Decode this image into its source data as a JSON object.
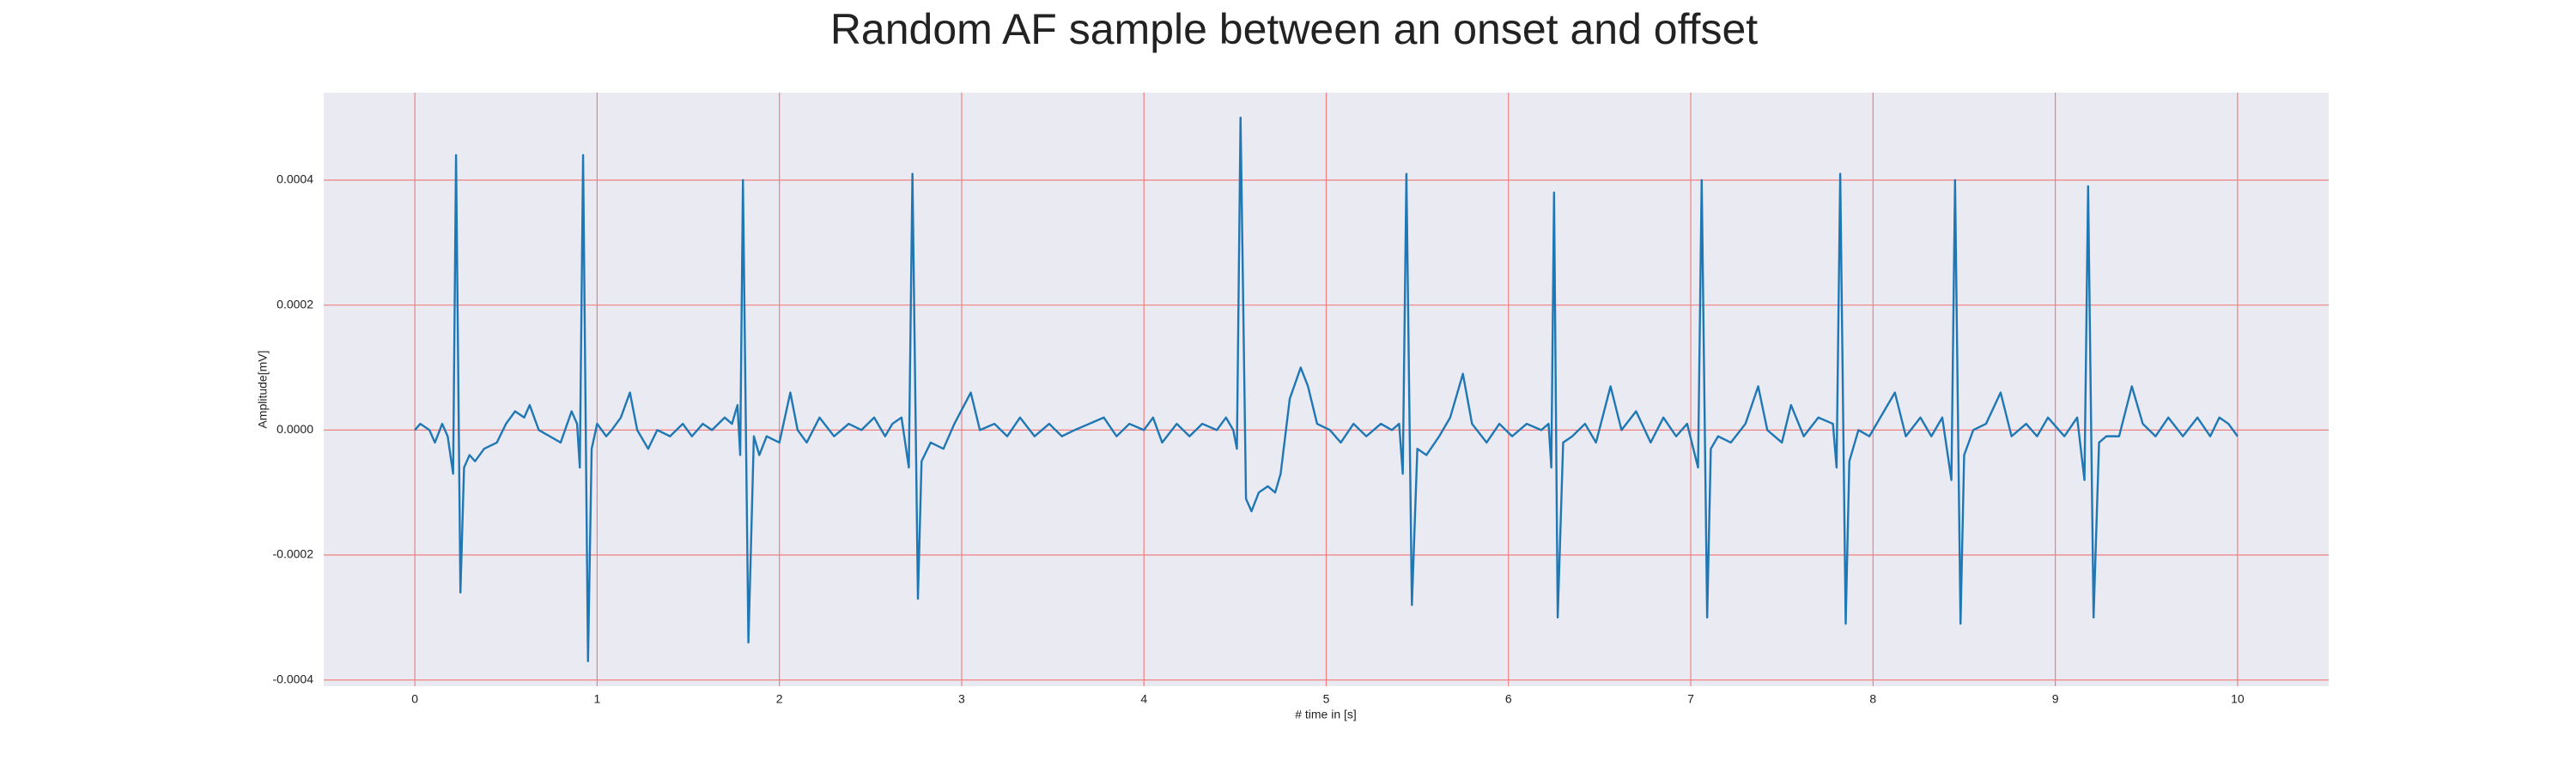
{
  "chart_data": {
    "type": "line",
    "title": "Random AF sample between an onset and offset",
    "xlabel": "# time in [s]",
    "ylabel": "Amplitude[mV]",
    "color": "#1f77b4",
    "grid": true,
    "grid_color": "#f08080",
    "background": "#eaeaf2",
    "xlim": [
      -0.5,
      10.5
    ],
    "ylim": [
      -0.00041,
      0.00054
    ],
    "xticks": [
      0,
      1,
      2,
      3,
      4,
      5,
      6,
      7,
      8,
      9,
      10
    ],
    "yticks": [
      -0.0004,
      -0.0002,
      {
        "value": 0,
        "label": "0.0000"
      },
      0.0002,
      0.0004
    ],
    "x": [
      0.0,
      0.03,
      0.08,
      0.11,
      0.15,
      0.18,
      0.21,
      0.226,
      0.25,
      0.27,
      0.3,
      0.33,
      0.38,
      0.45,
      0.5,
      0.55,
      0.6,
      0.63,
      0.68,
      0.74,
      0.8,
      0.86,
      0.89,
      0.905,
      0.923,
      0.95,
      0.97,
      1.0,
      1.05,
      1.08,
      1.13,
      1.18,
      1.22,
      1.28,
      1.33,
      1.4,
      1.47,
      1.52,
      1.58,
      1.63,
      1.7,
      1.74,
      1.77,
      1.785,
      1.8,
      1.83,
      1.86,
      1.89,
      1.93,
      2.0,
      2.06,
      2.1,
      2.15,
      2.22,
      2.3,
      2.38,
      2.45,
      2.52,
      2.58,
      2.62,
      2.67,
      2.71,
      2.73,
      2.76,
      2.78,
      2.83,
      2.9,
      2.96,
      3.05,
      3.1,
      3.18,
      3.25,
      3.32,
      3.4,
      3.48,
      3.55,
      3.62,
      3.7,
      3.78,
      3.85,
      3.92,
      4.0,
      4.05,
      4.1,
      4.18,
      4.25,
      4.32,
      4.4,
      4.45,
      4.49,
      4.51,
      4.53,
      4.56,
      4.59,
      4.63,
      4.68,
      4.72,
      4.75,
      4.8,
      4.86,
      4.9,
      4.95,
      5.02,
      5.08,
      5.15,
      5.22,
      5.3,
      5.36,
      5.4,
      5.42,
      5.44,
      5.47,
      5.5,
      5.55,
      5.62,
      5.68,
      5.75,
      5.8,
      5.88,
      5.95,
      6.02,
      6.1,
      6.18,
      6.22,
      6.235,
      6.25,
      6.27,
      6.3,
      6.35,
      6.42,
      6.48,
      6.56,
      6.62,
      6.7,
      6.78,
      6.85,
      6.92,
      6.98,
      7.04,
      7.06,
      7.09,
      7.11,
      7.15,
      7.22,
      7.3,
      7.37,
      7.42,
      7.5,
      7.55,
      7.62,
      7.7,
      7.78,
      7.8,
      7.82,
      7.85,
      7.87,
      7.92,
      7.98,
      8.04,
      8.12,
      8.18,
      8.26,
      8.32,
      8.38,
      8.43,
      8.45,
      8.48,
      8.5,
      8.55,
      8.62,
      8.7,
      8.76,
      8.84,
      8.9,
      8.96,
      9.05,
      9.12,
      9.16,
      9.18,
      9.21,
      9.24,
      9.28,
      9.35,
      9.42,
      9.48,
      9.55,
      9.62,
      9.7,
      9.78,
      9.85,
      9.9,
      9.95,
      10.0
    ],
    "values": [
      0.0,
      1e-05,
      0.0,
      -2e-05,
      1e-05,
      -1e-05,
      -7e-05,
      0.00044,
      -0.00026,
      -6e-05,
      -4e-05,
      -5e-05,
      -3e-05,
      -2e-05,
      1e-05,
      3e-05,
      2e-05,
      4e-05,
      0.0,
      -1e-05,
      -2e-05,
      3e-05,
      1e-05,
      -6e-05,
      0.00044,
      -0.00037,
      -3e-05,
      1e-05,
      -1e-05,
      0.0,
      2e-05,
      6e-05,
      0.0,
      -3e-05,
      0.0,
      -1e-05,
      1e-05,
      -1e-05,
      1e-05,
      0.0,
      2e-05,
      1e-05,
      4e-05,
      -4e-05,
      0.0004,
      -0.00034,
      -1e-05,
      -4e-05,
      -1e-05,
      -2e-05,
      6e-05,
      0.0,
      -2e-05,
      2e-05,
      -1e-05,
      1e-05,
      0.0,
      2e-05,
      -1e-05,
      1e-05,
      2e-05,
      -6e-05,
      0.00041,
      -0.00027,
      -5e-05,
      -2e-05,
      -3e-05,
      1e-05,
      6e-05,
      0.0,
      1e-05,
      -1e-05,
      2e-05,
      -1e-05,
      1e-05,
      -1e-05,
      0.0,
      1e-05,
      2e-05,
      -1e-05,
      1e-05,
      0.0,
      2e-05,
      -2e-05,
      1e-05,
      -1e-05,
      1e-05,
      0.0,
      2e-05,
      0.0,
      -3e-05,
      0.0005,
      -0.00011,
      -0.00013,
      -0.0001,
      -9e-05,
      -0.0001,
      -7e-05,
      5e-05,
      0.0001,
      7e-05,
      1e-05,
      0.0,
      -2e-05,
      1e-05,
      -1e-05,
      1e-05,
      0.0,
      1e-05,
      -7e-05,
      0.00041,
      -0.00028,
      -3e-05,
      -4e-05,
      -1e-05,
      2e-05,
      9e-05,
      1e-05,
      -2e-05,
      1e-05,
      -1e-05,
      1e-05,
      0.0,
      1e-05,
      -6e-05,
      0.00038,
      -0.0003,
      -2e-05,
      -1e-05,
      1e-05,
      -2e-05,
      7e-05,
      0.0,
      3e-05,
      -2e-05,
      2e-05,
      -1e-05,
      1e-05,
      -6e-05,
      0.0004,
      -0.0003,
      -3e-05,
      -1e-05,
      -2e-05,
      1e-05,
      7e-05,
      0.0,
      -2e-05,
      4e-05,
      -1e-05,
      2e-05,
      1e-05,
      -6e-05,
      0.00041,
      -0.00031,
      -5e-05,
      0.0,
      -1e-05,
      2e-05,
      6e-05,
      -1e-05,
      2e-05,
      -1e-05,
      2e-05,
      -8e-05,
      0.0004,
      -0.00031,
      -4e-05,
      0.0,
      1e-05,
      6e-05,
      -1e-05,
      1e-05,
      -1e-05,
      2e-05,
      -1e-05,
      2e-05,
      -8e-05,
      0.00039,
      -0.0003,
      -2e-05,
      -1e-05,
      -1e-05,
      7e-05,
      1e-05,
      -1e-05,
      2e-05,
      -1e-05,
      2e-05,
      -1e-05,
      2e-05,
      1e-05,
      -1e-05
    ]
  }
}
